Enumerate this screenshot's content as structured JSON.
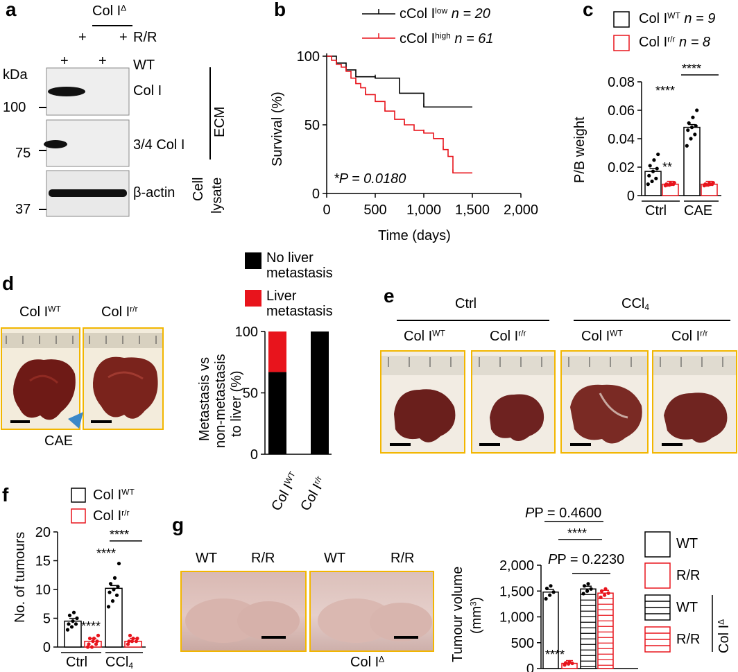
{
  "panel_labels": {
    "a": "a",
    "b": "b",
    "c": "c",
    "d": "d",
    "e": "e",
    "f": "f",
    "g": "g"
  },
  "a": {
    "header_col": "Col I",
    "header_col_sup": "Δ",
    "row_rr": "R/R",
    "row_wt": "WT",
    "plus": "+",
    "kda": "kDa",
    "mw": [
      "100",
      "75",
      "37"
    ],
    "bands": [
      "Col I",
      "3/4 Col I",
      "β-actin"
    ],
    "ecm": "ECM",
    "cell": "Cell",
    "lysate": "lysate"
  },
  "b": {
    "legend_low": "cCol I",
    "legend_low_sup": "low",
    "legend_low_n": "n = 20",
    "legend_high": "cCol I",
    "legend_high_sup": "high",
    "legend_high_n": "n = 61",
    "pvalue": "*P = 0.0180",
    "ylabel": "Survival (%)",
    "xlabel": "Time (days)",
    "colors": {
      "low": "#000000",
      "high": "#e8141c"
    }
  },
  "c": {
    "legend_wt": "Col I",
    "legend_wt_sup": "WT",
    "legend_wt_n": "n = 9",
    "legend_rr": "Col I",
    "legend_rr_sup": "r/r",
    "legend_rr_n": "n = 8",
    "ylabel": "P/B weight",
    "groups": [
      "Ctrl",
      "CAE"
    ],
    "sig_within": "****",
    "sig_between": "****",
    "sig_ctrl": "**"
  },
  "d": {
    "photo_wt": "Col I",
    "photo_wt_sup": "WT",
    "photo_rr": "Col I",
    "photo_rr_sup": "r/r",
    "cae": "CAE",
    "legend_no": [
      "No liver",
      "metastasis"
    ],
    "legend_yes": [
      "Liver",
      "metastasis"
    ],
    "ylabel": [
      "Metastasis vs",
      "non-metastasis",
      "to liver (%)"
    ],
    "xlabels": [
      "Col I",
      "Col I"
    ],
    "xlabel_sups": [
      "WT",
      "r/r"
    ]
  },
  "e": {
    "group_ctrl": "Ctrl",
    "group_ccl": "CCl",
    "group_ccl_sub": "4",
    "photo_labels": [
      "Col I",
      "Col I",
      "Col I",
      "Col I"
    ],
    "photo_sups": [
      "WT",
      "r/r",
      "WT",
      "r/r"
    ]
  },
  "f": {
    "legend_wt": "Col I",
    "legend_wt_sup": "WT",
    "legend_rr": "Col I",
    "legend_rr_sup": "r/r",
    "ylabel": "No. of tumours",
    "groups": [
      "Ctrl",
      "CCl"
    ],
    "group2_sub": "4",
    "sig_top": "****",
    "sig_ccl": "****",
    "sig_ctrl": "****"
  },
  "g": {
    "photo_labels": [
      "WT",
      "R/R",
      "WT",
      "R/R"
    ],
    "footer": "Col I",
    "footer_sup": "Δ",
    "p_top": "P = 0.4600",
    "p_mid": "P = 0.2230",
    "sig_mid": "****",
    "sig_rr": "****",
    "ylabel": "Tumour volume",
    "ylabel2": "(mm",
    "ylabel2_sup": "3",
    "ylabel2_end": ")",
    "legend": [
      "WT",
      "R/R",
      "WT",
      "R/R"
    ],
    "legend_group": "Col I",
    "legend_group_sup": "Δ"
  },
  "chart_data": [
    {
      "type": "line",
      "panel": "b",
      "xlim": [
        0,
        2000
      ],
      "ylim": [
        0,
        100
      ],
      "xticks": [
        0,
        500,
        1000,
        1500,
        2000
      ],
      "xtick_labels": [
        "0",
        "500",
        "1,000",
        "1,500",
        "2,000"
      ],
      "yticks": [
        0,
        50,
        100
      ],
      "xlabel": "Time (days)",
      "ylabel": "Survival (%)",
      "series": [
        {
          "name": "cCol I low",
          "color": "#000000",
          "x": [
            0,
            100,
            200,
            300,
            500,
            750,
            1000,
            1500
          ],
          "y": [
            100,
            95,
            90,
            85,
            84,
            73,
            63,
            63
          ]
        },
        {
          "name": "cCol I high",
          "color": "#e8141c",
          "x": [
            0,
            50,
            100,
            150,
            200,
            250,
            300,
            350,
            400,
            500,
            600,
            700,
            800,
            900,
            1000,
            1100,
            1200,
            1250,
            1300,
            1500
          ],
          "y": [
            100,
            97,
            94,
            92,
            89,
            84,
            80,
            77,
            72,
            67,
            60,
            54,
            50,
            46,
            44,
            40,
            32,
            27,
            15,
            15
          ]
        }
      ]
    },
    {
      "type": "bar",
      "panel": "c",
      "categories": [
        "Ctrl",
        "CAE"
      ],
      "ylim": [
        0,
        0.08
      ],
      "yticks": [
        0,
        0.02,
        0.04,
        0.06,
        0.08
      ],
      "ytick_labels": [
        "0",
        "0.02",
        "0.04",
        "0.06",
        "0.08"
      ],
      "ylabel": "P/B weight",
      "series": [
        {
          "name": "Col I WT",
          "values": [
            0.017,
            0.048
          ],
          "points": [
            [
              0.008,
              0.01,
              0.012,
              0.014,
              0.017,
              0.019,
              0.021,
              0.025,
              0.029
            ],
            [
              0.035,
              0.04,
              0.043,
              0.046,
              0.048,
              0.049,
              0.051,
              0.055,
              0.06
            ]
          ]
        },
        {
          "name": "Col I r/r",
          "values": [
            0.008,
            0.008
          ],
          "points": [
            [
              0.007,
              0.0075,
              0.008,
              0.008,
              0.0085,
              0.009,
              0.0075,
              0.008
            ],
            [
              0.007,
              0.0075,
              0.008,
              0.008,
              0.0085,
              0.009,
              0.0075,
              0.008
            ]
          ]
        }
      ]
    },
    {
      "type": "bar",
      "panel": "d",
      "categories": [
        "Col I WT",
        "Col I r/r"
      ],
      "ylim": [
        0,
        100
      ],
      "yticks": [
        0,
        50,
        100
      ],
      "series": [
        {
          "name": "No liver metastasis",
          "values": [
            67,
            100
          ]
        },
        {
          "name": "Liver metastasis",
          "values": [
            33,
            0
          ]
        }
      ]
    },
    {
      "type": "bar",
      "panel": "f",
      "categories": [
        "Ctrl",
        "CCl4"
      ],
      "ylim": [
        0,
        20
      ],
      "yticks": [
        0,
        5,
        10,
        15,
        20
      ],
      "ylabel": "No. of tumours",
      "series": [
        {
          "name": "Col I WT",
          "values": [
            4.5,
            10.2
          ],
          "points": [
            [
              3,
              3.5,
              4,
              4,
              4.5,
              5,
              5.5,
              6
            ],
            [
              7,
              8,
              9,
              9.5,
              10,
              10.5,
              11,
              12,
              14.5
            ]
          ]
        },
        {
          "name": "Col I r/r",
          "values": [
            1,
            1
          ],
          "points": [
            [
              0,
              0,
              0.5,
              0.5,
              1,
              1,
              1.5,
              1.5,
              2
            ],
            [
              0.5,
              1,
              1,
              1,
              1.5,
              1.5,
              2
            ]
          ]
        }
      ]
    },
    {
      "type": "bar",
      "panel": "g",
      "categories": [
        "WT",
        "R/R",
        "Col IΔ WT",
        "Col IΔ R/R"
      ],
      "ylim": [
        0,
        2000
      ],
      "yticks": [
        0,
        500,
        1000,
        1500,
        2000
      ],
      "ytick_labels": [
        "0",
        "500",
        "1,000",
        "1,500",
        "2,000"
      ],
      "ylabel": "Tumour volume (mm3)",
      "values": [
        1480,
        100,
        1540,
        1460
      ],
      "points": [
        [
          1350,
          1420,
          1480,
          1550,
          1600
        ],
        [
          70,
          90,
          100,
          110,
          130
        ],
        [
          1450,
          1500,
          1540,
          1600,
          1640
        ],
        [
          1380,
          1420,
          1460,
          1500,
          1540
        ]
      ]
    }
  ]
}
